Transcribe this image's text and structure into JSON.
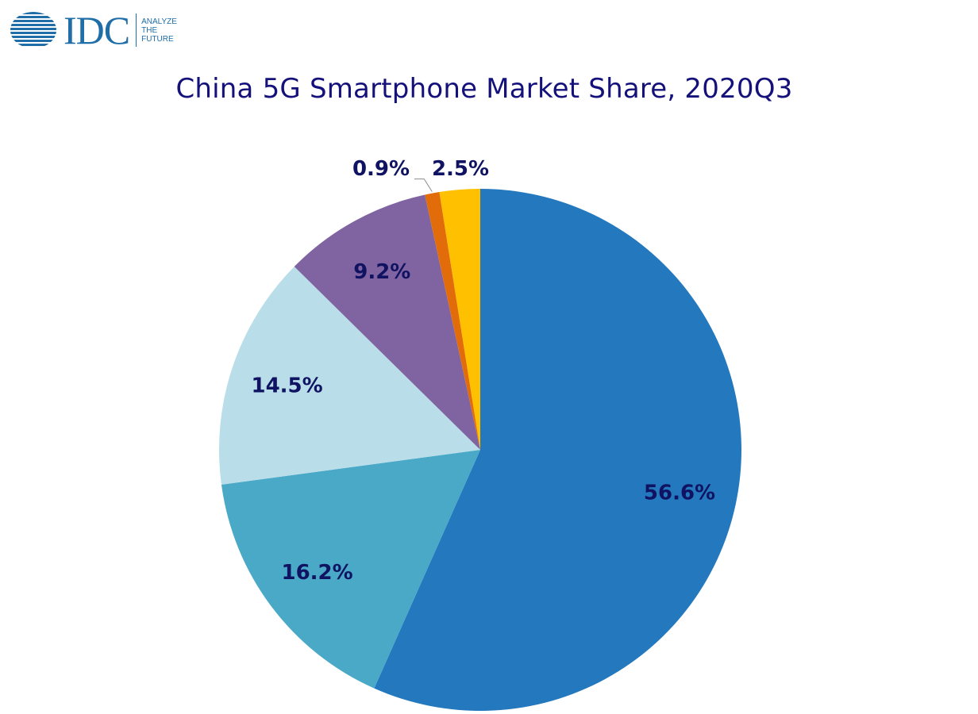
{
  "brand": {
    "wordmark": "IDC",
    "tagline": [
      "ANALYZE",
      "THE",
      "FUTURE"
    ],
    "color": "#1f6ea8"
  },
  "chart_data": {
    "type": "pie",
    "title": "China 5G Smartphone Market Share, 2020Q3",
    "start": "12 o'clock",
    "direction": "clockwise",
    "legend": "none",
    "slices": [
      {
        "value": 56.6,
        "label": "56.6%",
        "color": "#2478bd"
      },
      {
        "value": 16.2,
        "label": "16.2%",
        "color": "#4aa9c7"
      },
      {
        "value": 14.5,
        "label": "14.5%",
        "color": "#b9dde9"
      },
      {
        "value": 9.2,
        "label": "9.2%",
        "color": "#8064a2"
      },
      {
        "value": 0.9,
        "label": "0.9%",
        "color": "#e36c0a"
      },
      {
        "value": 2.5,
        "label": "2.5%",
        "color": "#ffc000"
      }
    ],
    "label_color": "#0f1362"
  }
}
